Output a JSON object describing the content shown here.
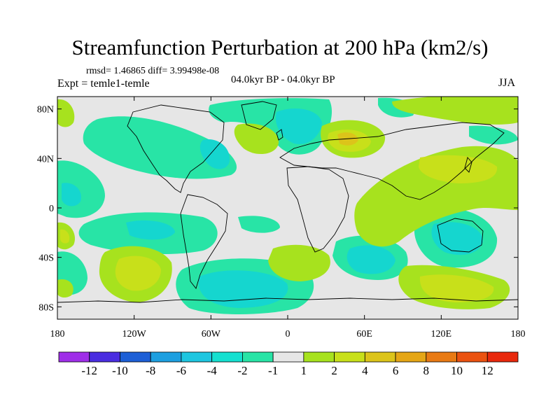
{
  "title": "Streamfunction Perturbation at 200 hPa (km2/s)",
  "stats_line": "rmsd= 1.46865 diff= 3.99498e-08",
  "experiment": "Expt = temle1-temle",
  "period": "04.0kyr BP - 04.0kyr BP",
  "season": "JJA",
  "map": {
    "lon_range": [
      -180,
      180
    ],
    "lat_range": [
      -90,
      90
    ],
    "lat_ticks": [
      {
        "lat": 80,
        "label": "80N"
      },
      {
        "lat": 40,
        "label": "40N"
      },
      {
        "lat": 0,
        "label": "0"
      },
      {
        "lat": -40,
        "label": "40S"
      },
      {
        "lat": -80,
        "label": "80S"
      }
    ],
    "lon_ticks": [
      {
        "lon": -180,
        "label": "180"
      },
      {
        "lon": -120,
        "label": "120W"
      },
      {
        "lon": -60,
        "label": "60W"
      },
      {
        "lon": 0,
        "label": "0"
      },
      {
        "lon": 60,
        "label": "60E"
      },
      {
        "lon": 120,
        "label": "120E"
      },
      {
        "lon": 180,
        "label": "180"
      }
    ]
  },
  "colorbar": {
    "colors": [
      "#9f2ee8",
      "#4a2de0",
      "#1d5fd6",
      "#1d9fe0",
      "#1ec6e0",
      "#15e0d0",
      "#28e4a6",
      "#e6e6e6",
      "#a7e21e",
      "#c8e01a",
      "#dcc41a",
      "#e5a616",
      "#e87a14",
      "#ea5210",
      "#e8280c"
    ],
    "labels": [
      "-12",
      "-10",
      "-8",
      "-6",
      "-4",
      "-2",
      "-1",
      "1",
      "2",
      "4",
      "6",
      "8",
      "10",
      "12"
    ]
  },
  "field_colors": {
    "background": "#e6e6e6",
    "neg1": "#28e4a6",
    "neg2": "#15d6cf",
    "pos1": "#a7e21e",
    "pos2": "#c8e01a",
    "pos4": "#dcc41a"
  }
}
